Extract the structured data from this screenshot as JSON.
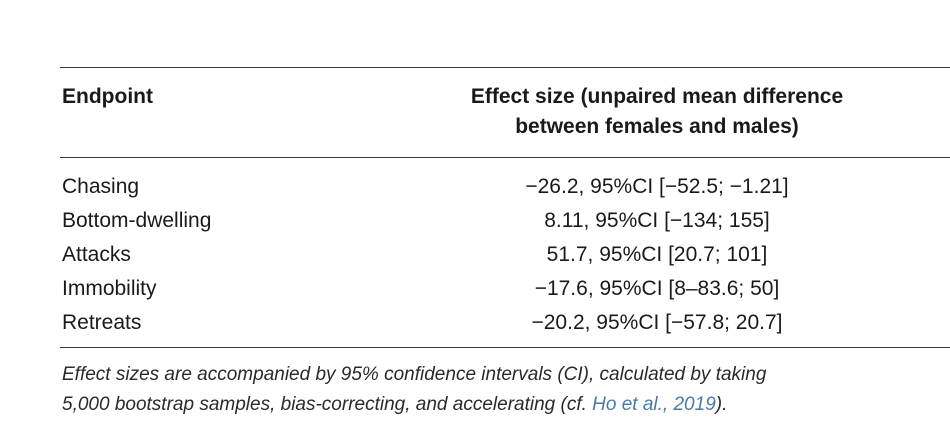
{
  "table": {
    "headers": {
      "endpoint": "Endpoint",
      "effect_line1": "Effect size (unpaired mean difference",
      "effect_line2": "between females and males)"
    },
    "rows": [
      {
        "endpoint": "Chasing",
        "effect": "−26.2, 95%CI [−52.5; −1.21]"
      },
      {
        "endpoint": "Bottom-dwelling",
        "effect": "8.11, 95%CI [−134; 155]"
      },
      {
        "endpoint": "Attacks",
        "effect": "51.7, 95%CI [20.7; 101]"
      },
      {
        "endpoint": "Immobility",
        "effect": "−17.6, 95%CI [8–83.6; 50]"
      },
      {
        "endpoint": "Retreats",
        "effect": "−20.2, 95%CI [−57.8; 20.7]"
      }
    ]
  },
  "footnote": {
    "line1": "Effect sizes are accompanied by 95% confidence intervals (CI), calculated by taking",
    "line2_before": "5,000 bootstrap samples, bias-correcting, and accelerating (cf. ",
    "citation": "Ho et al., 2019",
    "line2_after": ")."
  },
  "colors": {
    "citation_link": "#4a79a8",
    "rule": "#3a3a3a"
  }
}
